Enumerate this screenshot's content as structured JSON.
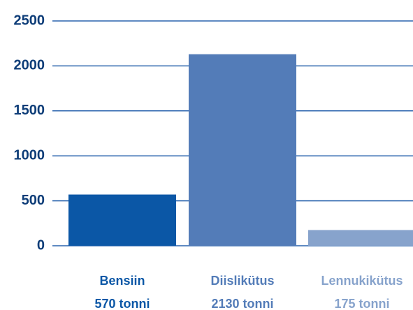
{
  "chart_data": {
    "type": "bar",
    "categories": [
      "Bensiin",
      "Diislikütus",
      "Lennukikütus"
    ],
    "values": [
      570,
      2130,
      175
    ],
    "value_labels": [
      "570 tonni",
      "2130 tonni",
      "175 tonni"
    ],
    "colors": [
      "#0b57a6",
      "#537cb8",
      "#87a3cc"
    ],
    "ylim": [
      0,
      2500
    ],
    "yticks": [
      0,
      500,
      1000,
      1500,
      2000,
      2500
    ],
    "grid": true
  }
}
